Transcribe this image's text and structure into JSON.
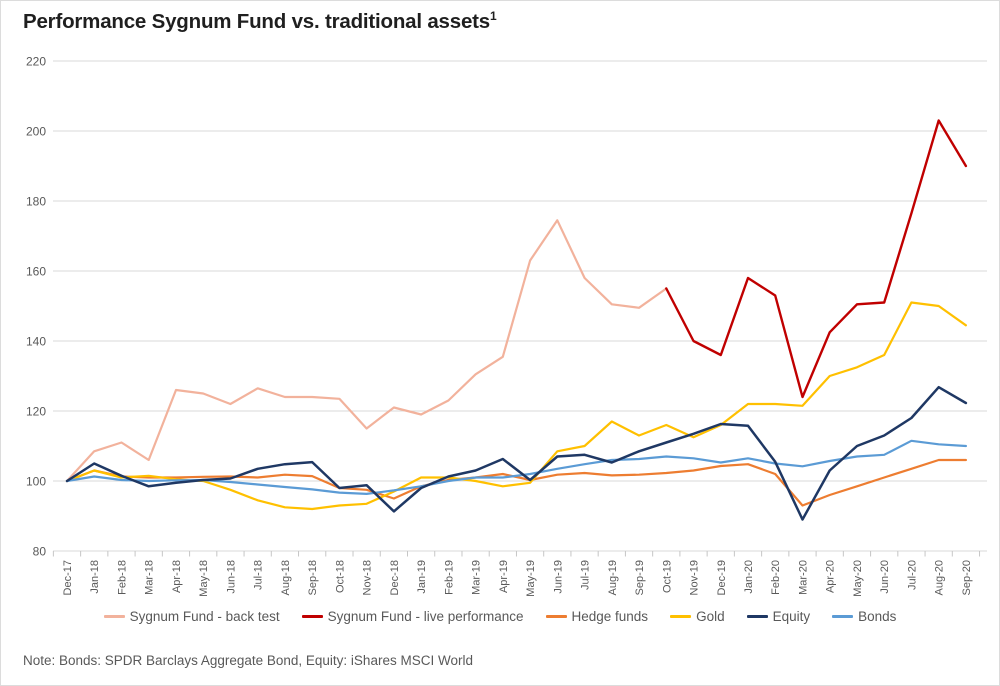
{
  "title": {
    "text": "Performance Sygnum Fund vs. traditional assets",
    "superscript": "1"
  },
  "note": "Note: Bonds: SPDR Barclays Aggregate Bond, Equity: iShares MSCI World",
  "colors": {
    "background": "#ffffff",
    "gridline": "#d9d9d9",
    "tick": "#c6c6c6",
    "axis_text": "#595959",
    "title_text": "#1f1f1f",
    "legend_text": "#595959"
  },
  "chart_data": {
    "type": "line",
    "title": "Performance Sygnum Fund vs. traditional assets¹",
    "xlabel": "",
    "ylabel": "",
    "ylim": [
      80,
      220
    ],
    "y_ticks": [
      80,
      100,
      120,
      140,
      160,
      180,
      200,
      220
    ],
    "grid": "horizontal",
    "legend_position": "bottom",
    "x_labels": [
      "Dec-17",
      "Jan-18",
      "Feb-18",
      "Mar-18",
      "Apr-18",
      "May-18",
      "Jun-18",
      "Jul-18",
      "Aug-18",
      "Sep-18",
      "Oct-18",
      "Nov-18",
      "Dec-18",
      "Jan-19",
      "Feb-19",
      "Mar-19",
      "Apr-19",
      "May-19",
      "Jun-19",
      "Jul-19",
      "Aug-19",
      "Sep-19",
      "Oct-19",
      "Nov-19",
      "Dec-19",
      "Jan-20",
      "Feb-20",
      "Mar-20",
      "Apr-20",
      "May-20",
      "Jun-20",
      "Jul-20",
      "Aug-20",
      "Sep-20"
    ],
    "series": [
      {
        "name": "Sygnum Fund - back test",
        "color": "#F2B29C",
        "width": 2.2,
        "start_index": 0,
        "values": [
          100,
          108.5,
          111,
          106,
          126,
          125,
          122,
          126.5,
          124,
          124,
          123.5,
          115,
          121,
          119,
          123,
          130.5,
          135.5,
          163,
          174.5,
          158,
          150.5,
          149.5,
          155
        ]
      },
      {
        "name": "Sygnum Fund - live performance",
        "color": "#C00000",
        "width": 2.4,
        "start_index": 22,
        "values": [
          155,
          140,
          136,
          158,
          153,
          124,
          142.5,
          150.5,
          151,
          176.5,
          203,
          190
        ]
      },
      {
        "name": "Hedge funds",
        "color": "#ED7D31",
        "width": 2.2,
        "start_index": 0,
        "values": [
          100,
          103,
          101.3,
          101,
          101,
          101.2,
          101.3,
          101,
          101.8,
          101.4,
          98,
          97.5,
          95,
          98.5,
          100.3,
          101,
          102,
          100.3,
          101.8,
          102.3,
          101.6,
          101.8,
          102.3,
          103,
          104.3,
          104.8,
          102,
          93,
          96,
          98.5,
          101,
          103.5,
          106,
          106
        ]
      },
      {
        "name": "Gold",
        "color": "#FFC000",
        "width": 2.2,
        "start_index": 0,
        "values": [
          100,
          103,
          101,
          101.5,
          100.5,
          100,
          97.5,
          94.5,
          92.5,
          92,
          93,
          93.5,
          97,
          101,
          101,
          100,
          98.5,
          99.5,
          108.5,
          110,
          117,
          113,
          116,
          112.5,
          116,
          122,
          122,
          121.5,
          130,
          132.5,
          136,
          151,
          150,
          144.5
        ]
      },
      {
        "name": "Equity",
        "color": "#1F3864",
        "width": 2.5,
        "start_index": 0,
        "values": [
          100,
          105,
          101.5,
          98.5,
          99.5,
          100.3,
          100.7,
          103.5,
          104.8,
          105.4,
          98,
          98.8,
          91.3,
          98,
          101.3,
          103,
          106.3,
          100.3,
          107,
          107.5,
          105.3,
          108.5,
          111,
          113.5,
          116.3,
          115.8,
          105.5,
          89,
          103,
          110,
          113,
          118,
          126.8,
          122.3
        ]
      },
      {
        "name": "Bonds",
        "color": "#5B9BD5",
        "width": 2.2,
        "start_index": 0,
        "values": [
          100,
          101.3,
          100.3,
          100,
          100.2,
          100.3,
          99.7,
          99,
          98.3,
          97.6,
          96.7,
          96.3,
          97.3,
          98.5,
          100,
          101,
          101,
          102,
          103.5,
          104.8,
          106,
          106.3,
          107,
          106.5,
          105.3,
          106.5,
          105,
          104.2,
          105.7,
          107,
          107.5,
          111.5,
          110.5,
          110
        ]
      }
    ],
    "draw_order": [
      0,
      2,
      3,
      5,
      4,
      1
    ]
  }
}
